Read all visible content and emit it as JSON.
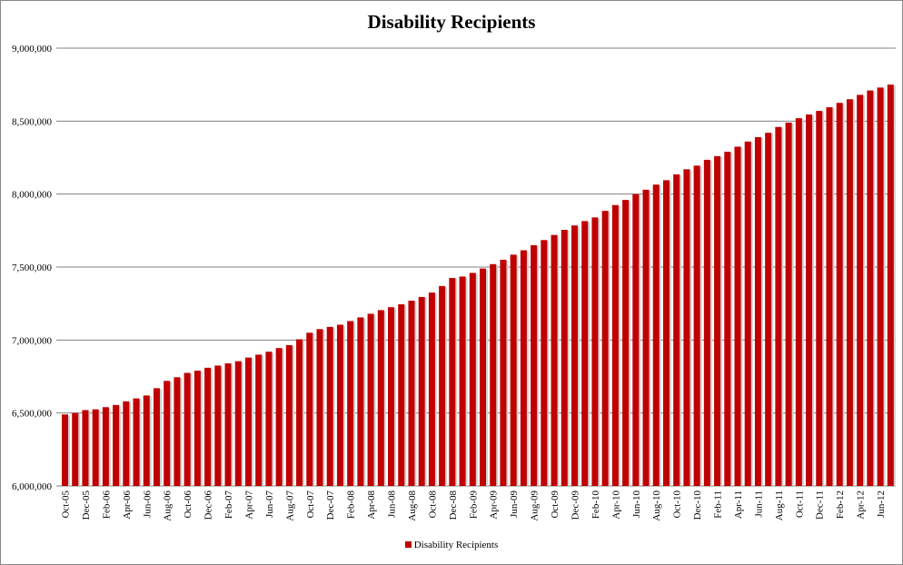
{
  "chart_data": {
    "type": "bar",
    "title": "Disability Recipients",
    "series": [
      {
        "name": "Disability Recipients",
        "color": "#c00000",
        "values": [
          6490000,
          6500000,
          6520000,
          6525000,
          6540000,
          6555000,
          6580000,
          6600000,
          6620000,
          6670000,
          6720000,
          6745000,
          6775000,
          6790000,
          6810000,
          6825000,
          6840000,
          6855000,
          6880000,
          6900000,
          6920000,
          6945000,
          6965000,
          7005000,
          7050000,
          7075000,
          7090000,
          7105000,
          7130000,
          7155000,
          7180000,
          7205000,
          7225000,
          7245000,
          7270000,
          7295000,
          7325000,
          7370000,
          7425000,
          7435000,
          7460000,
          7490000,
          7520000,
          7550000,
          7585000,
          7615000,
          7650000,
          7685000,
          7720000,
          7755000,
          7785000,
          7815000,
          7840000,
          7885000,
          7925000,
          7960000,
          8000000,
          8030000,
          8065000,
          8095000,
          8135000,
          8170000,
          8195000,
          8235000,
          8260000,
          8290000,
          8325000,
          8360000,
          8390000,
          8420000,
          8460000,
          8490000,
          8520000,
          8545000,
          8570000,
          8595000,
          8625000,
          8650000,
          8680000,
          8710000,
          8730000,
          8750000
        ]
      }
    ],
    "x_tick_labels": [
      "Oct-05",
      "Dec-05",
      "Feb-06",
      "Apr-06",
      "Jun-06",
      "Aug-06",
      "Oct-06",
      "Dec-06",
      "Feb-07",
      "Apr-07",
      "Jun-07",
      "Aug-07",
      "Oct-07",
      "Dec-07",
      "Feb-08",
      "Apr-08",
      "Jun-08",
      "Aug-08",
      "Oct-08",
      "Dec-08",
      "Feb-09",
      "Apr-09",
      "Jun-09",
      "Aug-09",
      "Oct-09",
      "Dec-09",
      "Feb-10",
      "Apr-10",
      "Jun-10",
      "Aug-10",
      "Oct-10",
      "Dec-10",
      "Feb-11",
      "Apr-11",
      "Jun-11",
      "Aug-11",
      "Oct-11",
      "Dec-11",
      "Feb-12",
      "Apr-12",
      "Jun-12"
    ],
    "x_tick_every": 2,
    "y_ticks": [
      "6,000,000",
      "6,500,000",
      "7,000,000",
      "7,500,000",
      "8,000,000",
      "8,500,000",
      "9,000,000"
    ],
    "ylim": [
      6000000,
      9000000
    ],
    "grid": true,
    "legend": "bottom",
    "xlabel": "",
    "ylabel": ""
  }
}
